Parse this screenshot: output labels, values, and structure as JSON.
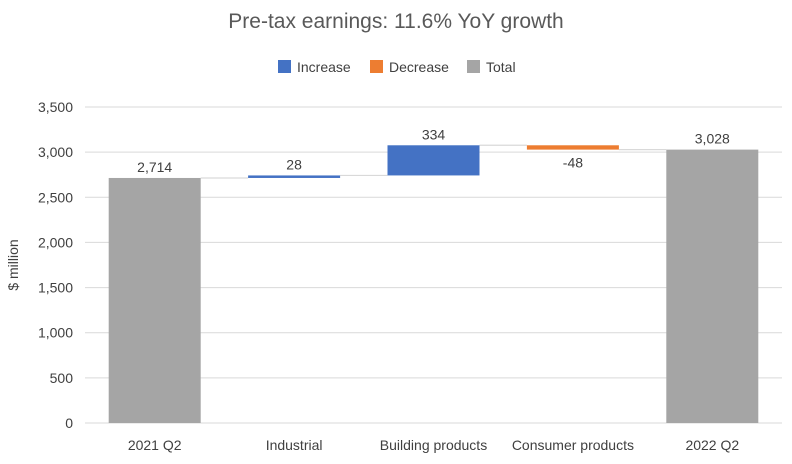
{
  "chart_data": {
    "type": "waterfall",
    "title": "Pre-tax earnings: 11.6% YoY growth",
    "ylabel": "$ million",
    "xlabel": "",
    "ylim": [
      0,
      3500
    ],
    "yticks": [
      0,
      500,
      1000,
      1500,
      2000,
      2500,
      3000,
      3500
    ],
    "ytick_labels": [
      "0",
      "500",
      "1,000",
      "1,500",
      "2,000",
      "2,500",
      "3,000",
      "3,500"
    ],
    "grid": true,
    "legend_position": "top-center",
    "legend": [
      {
        "name": "Increase",
        "color": "#4472c4"
      },
      {
        "name": "Decrease",
        "color": "#ed7d31"
      },
      {
        "name": "Total",
        "color": "#a5a5a5"
      }
    ],
    "categories": [
      "2021 Q2",
      "Industrial",
      "Building products",
      "Consumer products",
      "2022 Q2"
    ],
    "bars": [
      {
        "category": "2021 Q2",
        "kind": "total",
        "base": 0,
        "value": 2714,
        "label": "2,714"
      },
      {
        "category": "Industrial",
        "kind": "increase",
        "base": 2714,
        "value": 28,
        "label": "28"
      },
      {
        "category": "Building products",
        "kind": "increase",
        "base": 2742,
        "value": 334,
        "label": "334"
      },
      {
        "category": "Consumer products",
        "kind": "decrease",
        "base": 3076,
        "value": -48,
        "label": "-48"
      },
      {
        "category": "2022 Q2",
        "kind": "total",
        "base": 0,
        "value": 3028,
        "label": "3,028"
      }
    ],
    "colors": {
      "increase": "#4472c4",
      "decrease": "#ed7d31",
      "total": "#a5a5a5"
    }
  }
}
